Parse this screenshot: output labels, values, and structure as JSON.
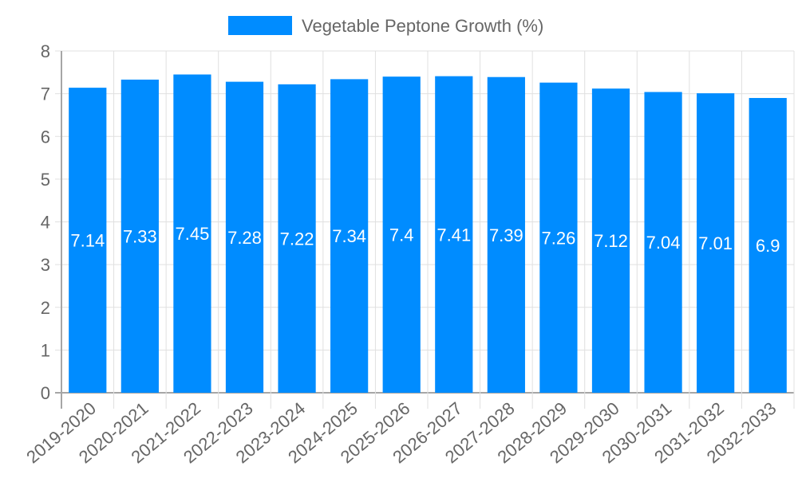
{
  "legend": {
    "label": "Vegetable Peptone Growth (%)",
    "color": "#008cff"
  },
  "colors": {
    "bar": "#008cff",
    "grid": "#e0e0e0",
    "axis": "#a6a6a6",
    "text": "#666666",
    "value_text": "#ffffff"
  },
  "chart_data": {
    "type": "bar",
    "title": "",
    "xlabel": "",
    "ylabel": "",
    "ylim": [
      0,
      8
    ],
    "yticks": [
      0,
      1,
      2,
      3,
      4,
      5,
      6,
      7,
      8
    ],
    "grid": true,
    "legend_position": "top",
    "categories": [
      "2019-2020",
      "2020-2021",
      "2021-2022",
      "2022-2023",
      "2023-2024",
      "2024-2025",
      "2025-2026",
      "2026-2027",
      "2027-2028",
      "2028-2029",
      "2029-2030",
      "2030-2031",
      "2031-2032",
      "2032-2033"
    ],
    "series": [
      {
        "name": "Vegetable Peptone Growth (%)",
        "values": [
          7.14,
          7.33,
          7.45,
          7.28,
          7.22,
          7.34,
          7.4,
          7.41,
          7.39,
          7.26,
          7.12,
          7.04,
          7.01,
          6.9
        ]
      }
    ],
    "value_labels": [
      "7.14",
      "7.33",
      "7.45",
      "7.28",
      "7.22",
      "7.34",
      "7.4",
      "7.41",
      "7.39",
      "7.26",
      "7.12",
      "7.04",
      "7.01",
      "6.9"
    ]
  }
}
